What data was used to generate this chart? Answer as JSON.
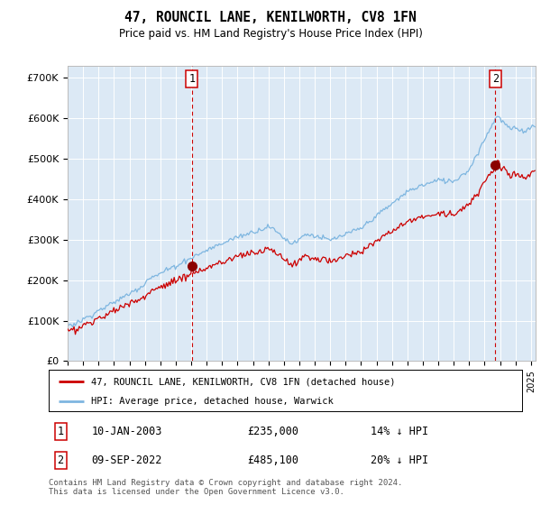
{
  "title": "47, ROUNCIL LANE, KENILWORTH, CV8 1FN",
  "subtitle": "Price paid vs. HM Land Registry's House Price Index (HPI)",
  "ylabel_ticks": [
    "£0",
    "£100K",
    "£200K",
    "£300K",
    "£400K",
    "£500K",
    "£600K",
    "£700K"
  ],
  "ytick_vals": [
    0,
    100000,
    200000,
    300000,
    400000,
    500000,
    600000,
    700000
  ],
  "ylim": [
    0,
    730000
  ],
  "xlim_start": 1995.0,
  "xlim_end": 2025.3,
  "purchase1_x": 2003.04,
  "purchase1_y": 235000,
  "purchase1_label": "10-JAN-2003",
  "purchase1_price": "£235,000",
  "purchase1_hpi": "14% ↓ HPI",
  "purchase2_x": 2022.69,
  "purchase2_y": 485100,
  "purchase2_label": "09-SEP-2022",
  "purchase2_price": "£485,100",
  "purchase2_hpi": "20% ↓ HPI",
  "legend_line1": "47, ROUNCIL LANE, KENILWORTH, CV8 1FN (detached house)",
  "legend_line2": "HPI: Average price, detached house, Warwick",
  "footer": "Contains HM Land Registry data © Crown copyright and database right 2024.\nThis data is licensed under the Open Government Licence v3.0.",
  "plot_bg_color": "#dce9f5",
  "hpi_color": "#7eb6e0",
  "price_color": "#cc0000",
  "marker_color": "#8b0000",
  "dashed_color": "#cc0000",
  "grid_color": "#ffffff",
  "n_points": 365
}
